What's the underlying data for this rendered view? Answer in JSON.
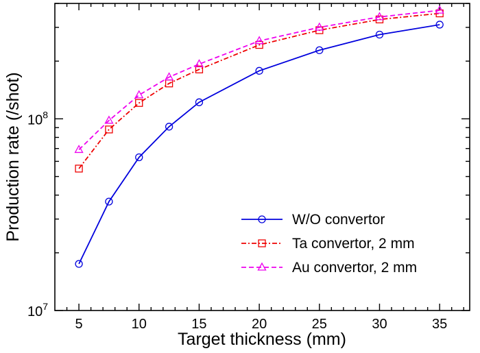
{
  "chart_data": {
    "type": "line",
    "title": "",
    "xlabel": "Target thickness (mm)",
    "ylabel": "Production rate (/shot)",
    "xscale": "linear",
    "yscale": "log",
    "xlim": [
      3,
      37.5
    ],
    "ylim": [
      10000000,
      400000000
    ],
    "xticks": [
      5,
      10,
      15,
      20,
      25,
      30,
      35
    ],
    "xtick_labels": [
      "5",
      "10",
      "15",
      "20",
      "25",
      "30",
      "35"
    ],
    "yticks_major": [
      {
        "value": 10000000,
        "base": "10",
        "exp": "7"
      },
      {
        "value": 100000000,
        "base": "10",
        "exp": "8"
      }
    ],
    "grid": false,
    "legend_position": "lower-right",
    "series": [
      {
        "name": "W/O convertor",
        "color": "#0000dd",
        "line_style": "solid",
        "marker": "circle",
        "x": [
          5,
          7.5,
          10,
          12.5,
          15,
          20,
          25,
          30,
          35
        ],
        "y": [
          17500000,
          37000000,
          63000000,
          91000000,
          122000000,
          178000000,
          228000000,
          275000000,
          310000000
        ]
      },
      {
        "name": "Ta convertor, 2 mm",
        "color": "#ee0000",
        "line_style": "dash-dot",
        "marker": "square",
        "x": [
          5,
          7.5,
          10,
          12.5,
          15,
          20,
          25,
          30,
          35
        ],
        "y": [
          55000000,
          88000000,
          121000000,
          153000000,
          181000000,
          243000000,
          290000000,
          330000000,
          355000000
        ]
      },
      {
        "name": "Au convertor, 2 mm",
        "color": "#ee00ee",
        "line_style": "dashed",
        "marker": "triangle",
        "x": [
          5,
          7.5,
          10,
          12.5,
          15,
          20,
          25,
          30,
          35
        ],
        "y": [
          69000000,
          98000000,
          133000000,
          165000000,
          193000000,
          255000000,
          300000000,
          340000000,
          368000000
        ]
      }
    ]
  }
}
